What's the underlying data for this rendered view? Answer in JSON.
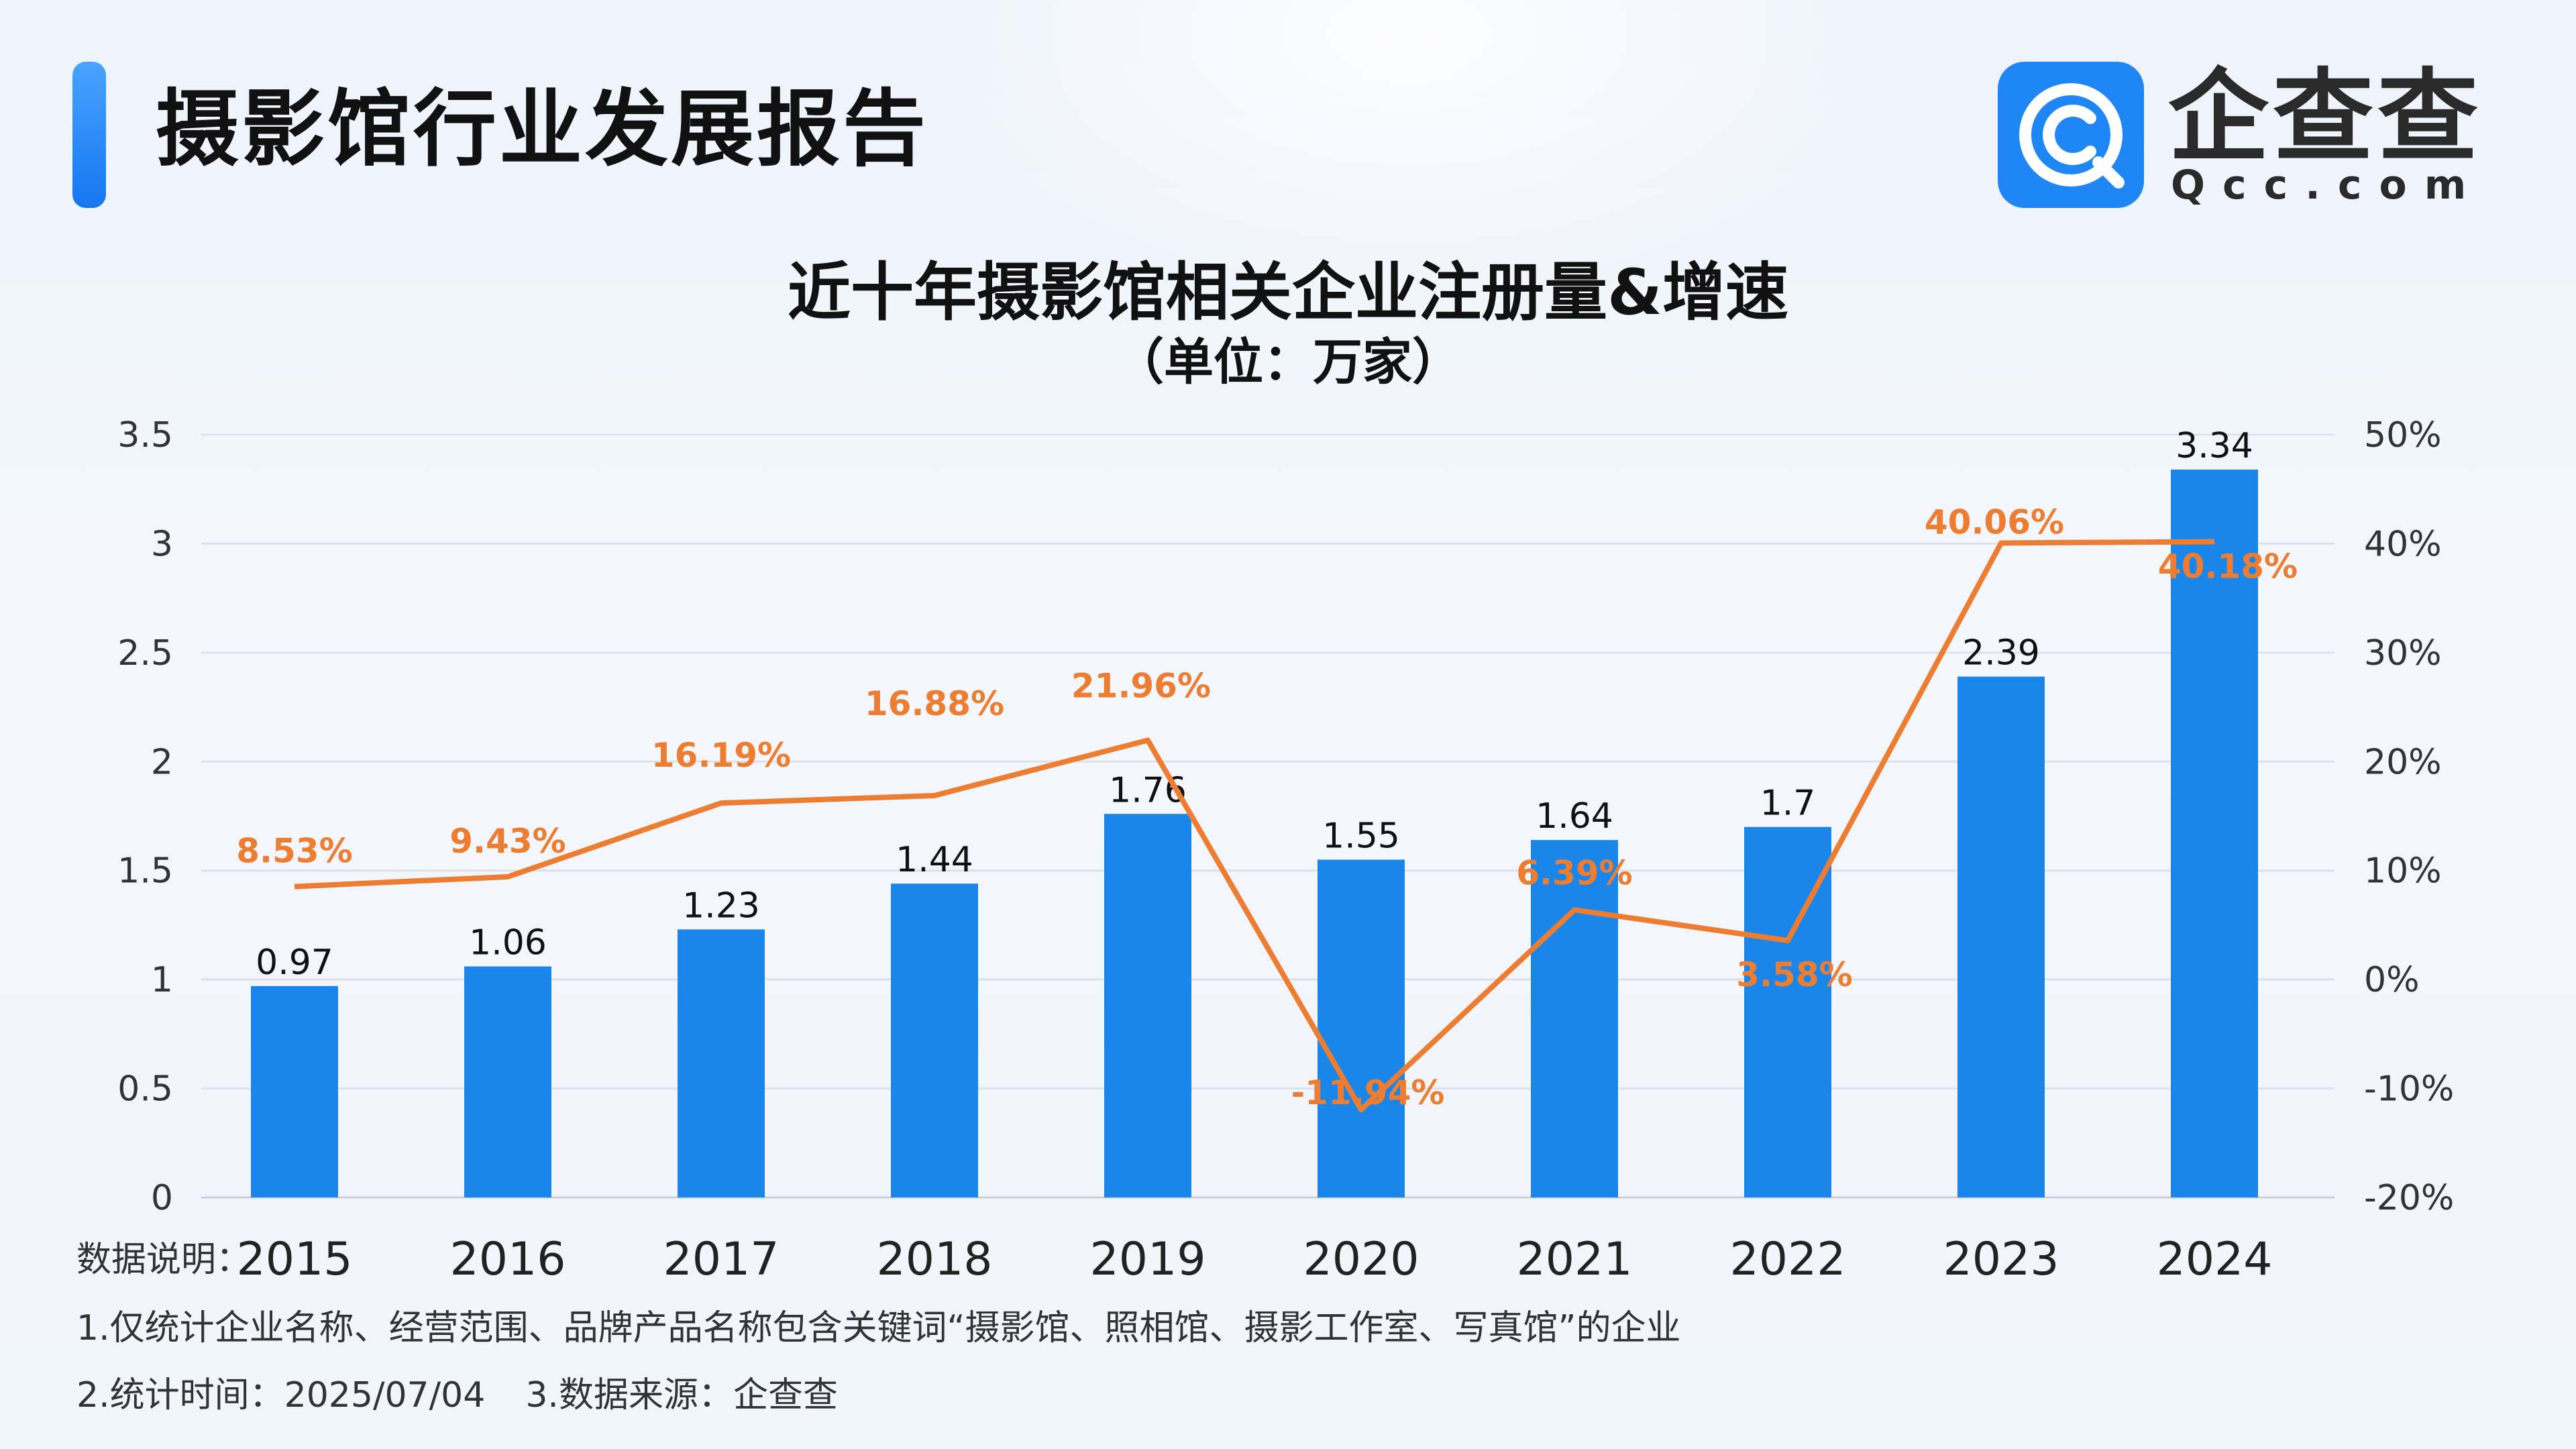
{
  "header": {
    "report_title": "摄影馆行业发展报告",
    "logo_cn": "企查查",
    "logo_en": "Qcc.com",
    "logo_icon": "qcc-logo-icon"
  },
  "chart_data": {
    "type": "bar",
    "title": "近十年摄影馆相关企业注册量&增速",
    "subtitle": "（单位：万家）",
    "categories": [
      "2015",
      "2016",
      "2017",
      "2018",
      "2019",
      "2020",
      "2021",
      "2022",
      "2023",
      "2024"
    ],
    "series": [
      {
        "type": "bar",
        "axis": "left",
        "values": [
          0.97,
          1.06,
          1.23,
          1.44,
          1.76,
          1.55,
          1.64,
          1.7,
          2.39,
          3.34
        ],
        "labels": [
          "0.97",
          "1.06",
          "1.23",
          "1.44",
          "1.76",
          "1.55",
          "1.64",
          "1.7",
          "2.39",
          "3.34"
        ],
        "color": "#1a86ea"
      },
      {
        "type": "line",
        "axis": "right",
        "values": [
          8.53,
          9.43,
          16.19,
          16.88,
          21.96,
          -11.94,
          6.39,
          3.58,
          40.06,
          40.18
        ],
        "labels": [
          "8.53%",
          "9.43%",
          "16.19%",
          "16.88%",
          "21.96%",
          "-11.94%",
          "6.39%",
          "3.58%",
          "40.06%",
          "40.18%"
        ],
        "color": "#ed7d31"
      }
    ],
    "y_left": {
      "min": 0,
      "max": 3.5,
      "ticks": [
        "0",
        "0.5",
        "1",
        "1.5",
        "2",
        "2.5",
        "3",
        "3.5"
      ]
    },
    "y_right": {
      "min": -20,
      "max": 50,
      "ticks": [
        "-20%",
        "-10%",
        "0%",
        "10%",
        "20%",
        "30%",
        "40%",
        "50%"
      ]
    },
    "grid": true,
    "legend": "none"
  },
  "notes": {
    "label": "数据说明：",
    "line1": "1.仅统计企业名称、经营范围、品牌产品名称包含关键词“摄影馆、照相馆、摄影工作室、写真馆”的企业",
    "line2a": "2.统计时间：2025/07/04",
    "line2b": "3.数据来源：企查查"
  }
}
